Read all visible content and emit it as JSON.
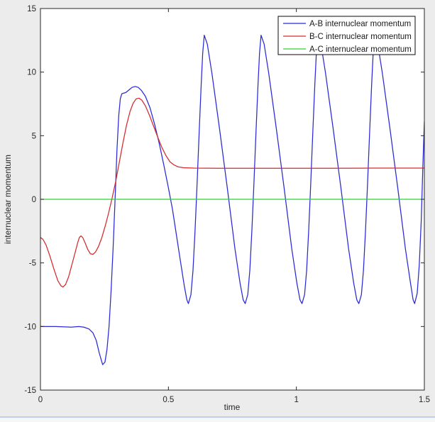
{
  "window": {
    "background_color": "#ececec",
    "bottom_border_color": "#bcd0e8"
  },
  "chart_data": {
    "type": "line",
    "title": "",
    "xlabel": "time",
    "ylabel": "internuclear momentum",
    "xlim": [
      0,
      1.5
    ],
    "ylim": [
      -15,
      15
    ],
    "xticks": [
      0,
      0.5,
      1,
      1.5
    ],
    "xtick_labels": [
      "0",
      "0.5",
      "1",
      "1.5"
    ],
    "yticks": [
      -15,
      -10,
      -5,
      0,
      5,
      10,
      15
    ],
    "ytick_labels": [
      "-15",
      "-10",
      "-5",
      "0",
      "5",
      "10",
      "15"
    ],
    "grid": false,
    "axes": {
      "plot_background": "#ffffff",
      "box_color": "#262626",
      "tick_label_color": "#262626",
      "label_color": "#262626"
    },
    "legend": {
      "position": "top-right",
      "background": "#ffffff",
      "border_color": "#0a0a0a",
      "text_color": "#1a1a1a"
    },
    "series": [
      {
        "name": "A-B internuclear momentum",
        "color": "#2929d6",
        "points": [
          [
            0.0,
            -10.0
          ],
          [
            0.06,
            -10.0
          ],
          [
            0.12,
            -10.05
          ],
          [
            0.15,
            -10.0
          ],
          [
            0.17,
            -10.05
          ],
          [
            0.19,
            -10.2
          ],
          [
            0.205,
            -10.5
          ],
          [
            0.218,
            -11.1
          ],
          [
            0.23,
            -12.1
          ],
          [
            0.243,
            -13.0
          ],
          [
            0.252,
            -12.8
          ],
          [
            0.26,
            -11.8
          ],
          [
            0.268,
            -10.0
          ],
          [
            0.276,
            -7.2
          ],
          [
            0.284,
            -3.8
          ],
          [
            0.292,
            0.2
          ],
          [
            0.299,
            3.9
          ],
          [
            0.306,
            6.6
          ],
          [
            0.312,
            7.9
          ],
          [
            0.318,
            8.3
          ],
          [
            0.326,
            8.35
          ],
          [
            0.334,
            8.4
          ],
          [
            0.346,
            8.6
          ],
          [
            0.358,
            8.8
          ],
          [
            0.37,
            8.87
          ],
          [
            0.382,
            8.8
          ],
          [
            0.395,
            8.55
          ],
          [
            0.41,
            8.1
          ],
          [
            0.428,
            7.2
          ],
          [
            0.446,
            5.9
          ],
          [
            0.464,
            4.4
          ],
          [
            0.482,
            2.7
          ],
          [
            0.5,
            0.9
          ],
          [
            0.516,
            -0.8
          ],
          [
            0.532,
            -2.9
          ],
          [
            0.548,
            -5.0
          ],
          [
            0.562,
            -6.8
          ],
          [
            0.572,
            -7.9
          ],
          [
            0.578,
            -8.2
          ],
          [
            0.588,
            -7.5
          ],
          [
            0.596,
            -5.6
          ],
          [
            0.604,
            -2.5
          ],
          [
            0.612,
            1.2
          ],
          [
            0.62,
            5.2
          ],
          [
            0.628,
            9.0
          ],
          [
            0.634,
            11.5
          ],
          [
            0.64,
            12.9
          ],
          [
            0.652,
            12.2
          ],
          [
            0.67,
            9.9
          ],
          [
            0.7,
            5.5
          ],
          [
            0.73,
            0.9
          ],
          [
            0.76,
            -3.9
          ],
          [
            0.78,
            -6.6
          ],
          [
            0.792,
            -7.9
          ],
          [
            0.8,
            -8.2
          ],
          [
            0.81,
            -7.5
          ],
          [
            0.818,
            -5.6
          ],
          [
            0.826,
            -2.5
          ],
          [
            0.834,
            1.2
          ],
          [
            0.842,
            5.2
          ],
          [
            0.85,
            9.0
          ],
          [
            0.856,
            11.5
          ],
          [
            0.862,
            12.9
          ],
          [
            0.874,
            12.2
          ],
          [
            0.892,
            9.9
          ],
          [
            0.922,
            5.5
          ],
          [
            0.952,
            0.9
          ],
          [
            0.982,
            -3.9
          ],
          [
            1.002,
            -6.6
          ],
          [
            1.014,
            -7.9
          ],
          [
            1.022,
            -8.2
          ],
          [
            1.032,
            -7.5
          ],
          [
            1.04,
            -5.6
          ],
          [
            1.048,
            -2.5
          ],
          [
            1.056,
            1.2
          ],
          [
            1.064,
            5.2
          ],
          [
            1.072,
            9.0
          ],
          [
            1.078,
            11.5
          ],
          [
            1.084,
            12.9
          ],
          [
            1.096,
            12.2
          ],
          [
            1.114,
            9.9
          ],
          [
            1.144,
            5.5
          ],
          [
            1.174,
            0.9
          ],
          [
            1.204,
            -3.9
          ],
          [
            1.224,
            -6.6
          ],
          [
            1.236,
            -7.9
          ],
          [
            1.244,
            -8.2
          ],
          [
            1.254,
            -7.5
          ],
          [
            1.262,
            -5.6
          ],
          [
            1.27,
            -2.5
          ],
          [
            1.278,
            1.2
          ],
          [
            1.286,
            5.2
          ],
          [
            1.294,
            9.0
          ],
          [
            1.3,
            11.5
          ],
          [
            1.306,
            12.9
          ],
          [
            1.318,
            12.2
          ],
          [
            1.336,
            9.9
          ],
          [
            1.366,
            5.5
          ],
          [
            1.396,
            0.9
          ],
          [
            1.426,
            -3.9
          ],
          [
            1.446,
            -6.6
          ],
          [
            1.456,
            -7.9
          ],
          [
            1.462,
            -8.2
          ],
          [
            1.472,
            -7.4
          ],
          [
            1.48,
            -5.2
          ],
          [
            1.488,
            -1.6
          ],
          [
            1.494,
            2.5
          ],
          [
            1.5,
            6.1
          ]
        ]
      },
      {
        "name": "B-C internuclear momentum",
        "color": "#d42a2a",
        "points": [
          [
            0.0,
            -3.0
          ],
          [
            0.01,
            -3.15
          ],
          [
            0.022,
            -3.6
          ],
          [
            0.036,
            -4.4
          ],
          [
            0.052,
            -5.45
          ],
          [
            0.068,
            -6.4
          ],
          [
            0.08,
            -6.8
          ],
          [
            0.088,
            -6.9
          ],
          [
            0.098,
            -6.7
          ],
          [
            0.11,
            -6.1
          ],
          [
            0.122,
            -5.2
          ],
          [
            0.134,
            -4.3
          ],
          [
            0.145,
            -3.45
          ],
          [
            0.152,
            -3.0
          ],
          [
            0.158,
            -2.88
          ],
          [
            0.165,
            -3.0
          ],
          [
            0.175,
            -3.45
          ],
          [
            0.185,
            -3.95
          ],
          [
            0.195,
            -4.28
          ],
          [
            0.205,
            -4.33
          ],
          [
            0.215,
            -4.15
          ],
          [
            0.227,
            -3.7
          ],
          [
            0.24,
            -3.0
          ],
          [
            0.253,
            -2.1
          ],
          [
            0.266,
            -1.1
          ],
          [
            0.28,
            0.1
          ],
          [
            0.294,
            1.4
          ],
          [
            0.308,
            2.9
          ],
          [
            0.322,
            4.4
          ],
          [
            0.336,
            5.8
          ],
          [
            0.35,
            6.9
          ],
          [
            0.362,
            7.55
          ],
          [
            0.374,
            7.9
          ],
          [
            0.385,
            7.95
          ],
          [
            0.396,
            7.8
          ],
          [
            0.41,
            7.35
          ],
          [
            0.426,
            6.6
          ],
          [
            0.442,
            5.75
          ],
          [
            0.458,
            4.9
          ],
          [
            0.474,
            4.1
          ],
          [
            0.49,
            3.45
          ],
          [
            0.506,
            2.95
          ],
          [
            0.522,
            2.7
          ],
          [
            0.538,
            2.55
          ],
          [
            0.56,
            2.48
          ],
          [
            0.6,
            2.45
          ],
          [
            0.7,
            2.44
          ],
          [
            0.9,
            2.44
          ],
          [
            1.1,
            2.44
          ],
          [
            1.3,
            2.45
          ],
          [
            1.5,
            2.45
          ]
        ]
      },
      {
        "name": "A-C internuclear momentum",
        "color": "#2ed32e",
        "points": [
          [
            0.0,
            0.0
          ],
          [
            1.5,
            0.0
          ]
        ]
      }
    ]
  }
}
